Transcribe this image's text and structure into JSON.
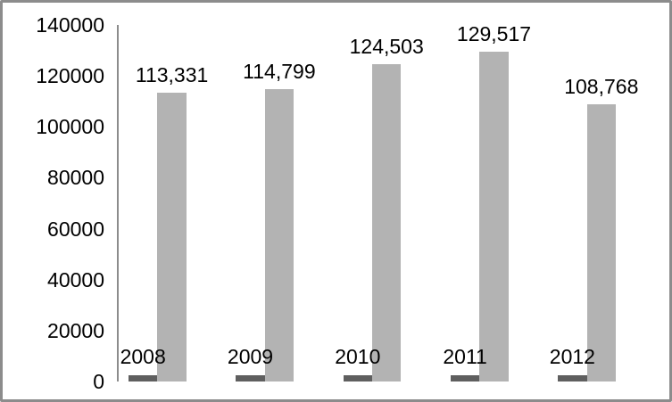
{
  "chart_data": {
    "type": "bar",
    "title": "",
    "xlabel": "",
    "ylabel": "",
    "categories": [
      "2008",
      "2009",
      "2010",
      "2011",
      "2012"
    ],
    "series": [
      {
        "name": "secondary-small-series",
        "color": "#5f5f5f",
        "values": [
          2450,
          2450,
          2450,
          2450,
          2450
        ],
        "values_estimated": true,
        "data_labels": [
          "",
          "",
          "",
          "",
          ""
        ]
      },
      {
        "name": "primary-series",
        "color": "#b3b3b3",
        "values": [
          113331,
          114799,
          124503,
          129517,
          108768
        ],
        "data_labels": [
          "113,331",
          "114,799",
          "124,503",
          "129,517",
          "108,768"
        ]
      }
    ],
    "ylim": [
      0,
      140000
    ],
    "yticks": [
      0,
      20000,
      40000,
      60000,
      80000,
      100000,
      120000,
      140000
    ],
    "ytick_labels": [
      "0",
      "20000",
      "40000",
      "60000",
      "80000",
      "100000",
      "120000",
      "140000"
    ],
    "grid": false,
    "legend": false,
    "x_axis_line": false,
    "y_axis_line": true,
    "colors": {
      "axis": "#8c8c8c",
      "text": "#000000",
      "frame_border": "#8c8c8c",
      "background": "#ffffff"
    }
  }
}
